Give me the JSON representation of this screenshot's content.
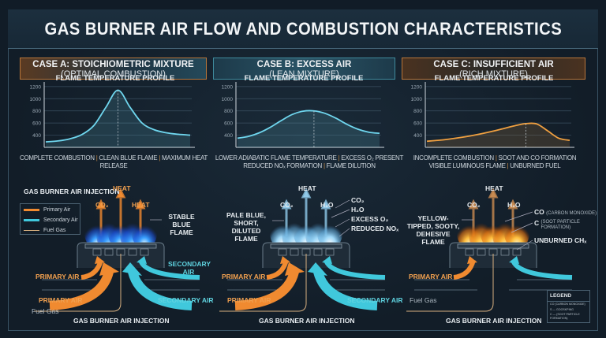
{
  "title": "GAS BURNER AIR FLOW AND COMBUSTION CHARACTERISTICS",
  "cases": [
    {
      "heading": "CASE A: STOICHIOMETRIC MIXTURE",
      "sub": "(OPTIMAL COMBUSTION)",
      "chart_title": "FLAME TEMPERATURE PROFILE",
      "caption": [
        "COMPLETE COMBUSTION",
        "CLEAN BLUE FLAME",
        "MAXIMUM HEAT RELEASE"
      ],
      "color": "#6fd6ee"
    },
    {
      "heading": "CASE B: EXCESS AIR",
      "sub": "(LEAN MIXTURE)",
      "chart_title": "FLAME TEMPERATURE PROFILE",
      "caption": [
        "LOWER ADIABATIC FLAME TEMPERATURE",
        "EXCESS O₂ PRESENT",
        "REDUCED NOₓ FORMATION",
        "FLAME DILUTION"
      ],
      "color": "#6fd6ee"
    },
    {
      "heading": "CASE C: INSUFFICIENT AIR",
      "sub": "(RICH MIXTURE)",
      "chart_title": "FLAME TEMPERATURE PROFILE",
      "caption": [
        "INCOMPLETE COMBUSTION",
        "SOOT AND CO FORMATION",
        "VISIBLE LUMINOUS FLAME",
        "UNBURNED FUEL"
      ],
      "color": "#f0a040"
    }
  ],
  "chart_data": [
    {
      "type": "line",
      "title": "FLAME TEMPERATURE PROFILE",
      "yticks": [
        400,
        600,
        800,
        1000,
        1200
      ],
      "ylim": [
        200,
        1250
      ],
      "grid": true,
      "values": [
        290,
        305,
        340,
        410,
        560,
        860,
        1140,
        860,
        600,
        490,
        440,
        415,
        400
      ],
      "peak_marker": true
    },
    {
      "type": "line",
      "title": "FLAME TEMPERATURE PROFILE",
      "yticks": [
        400,
        600,
        800,
        1000,
        1200
      ],
      "ylim": [
        200,
        1250
      ],
      "grid": true,
      "values": [
        350,
        380,
        440,
        530,
        640,
        740,
        795,
        800,
        760,
        680,
        580,
        500,
        450,
        430
      ],
      "peak_marker": true
    },
    {
      "type": "line",
      "title": "FLAME TEMPERATURE PROFILE",
      "yticks": [
        400,
        600,
        800,
        1000,
        1200
      ],
      "ylim": [
        200,
        1250
      ],
      "grid": true,
      "values": [
        300,
        315,
        335,
        360,
        390,
        425,
        465,
        510,
        555,
        590,
        585,
        470,
        350,
        315
      ],
      "peak_marker": true
    }
  ],
  "diagramA": {
    "legend_title": "GAS BURNER AIR INJECTION",
    "legend": [
      {
        "label": "Primary Air",
        "color": "#f08a30"
      },
      {
        "label": "Secondary Air",
        "color": "#40c8dc"
      },
      {
        "label": "Fuel Gas",
        "color": "#d8b080"
      }
    ],
    "heat1": "HEAT",
    "co2": "CO₂",
    "heat2": "HEAT",
    "flame_label": "STABLE BLUE FLAME",
    "secondary_air_1": "SECONDARY AIR",
    "primary_air_1": "PRIMARY AIR",
    "primary_air_2": "PRIMARY AIR",
    "secondary_air_2": "SECONDARY AIR",
    "fuel_gas": "Fuel Gas",
    "footer": "GAS BURNER AIR INJECTION"
  },
  "diagramB": {
    "heat": "HEAT",
    "co2": "CO₂",
    "h2o": "H₂O",
    "flame_label": "PALE BLUE, SHORT, DILUTED FLAME",
    "products": [
      "CO₂",
      "H₂O",
      "EXCESS O₂",
      "REDUCED NOₓ"
    ],
    "primary_air_1": "PRIMARY AIR",
    "primary_air_2": "PRIMARY AIR",
    "secondary_air": "SECONDARY AIR",
    "footer": "GAS BURNER AIR INJECTION"
  },
  "diagramC": {
    "heat": "HEAT",
    "co2": "CO₂",
    "h2o": "H₂O",
    "flame_label": "YELLOW-TIPPED, SOOTY, DEHESIVE FLAME",
    "co": "CO",
    "co_note": "(CARBON MONOXIDE)",
    "c": "C",
    "c_note": "(SOOT PARTICLE FORMATION)",
    "unburned": "UNBURNED CHₓ",
    "primary_air": "PRIMARY AIR",
    "fuel_gas": "Fuel Gas",
    "footer": "GAS BURNER AIR INJECTION",
    "legend_title": "LEGEND",
    "legend": [
      "CO (CARBON MONOXIDE)",
      "S — GOOSKPING",
      "C — (SOOT PARTICLE FORMATION)"
    ]
  }
}
